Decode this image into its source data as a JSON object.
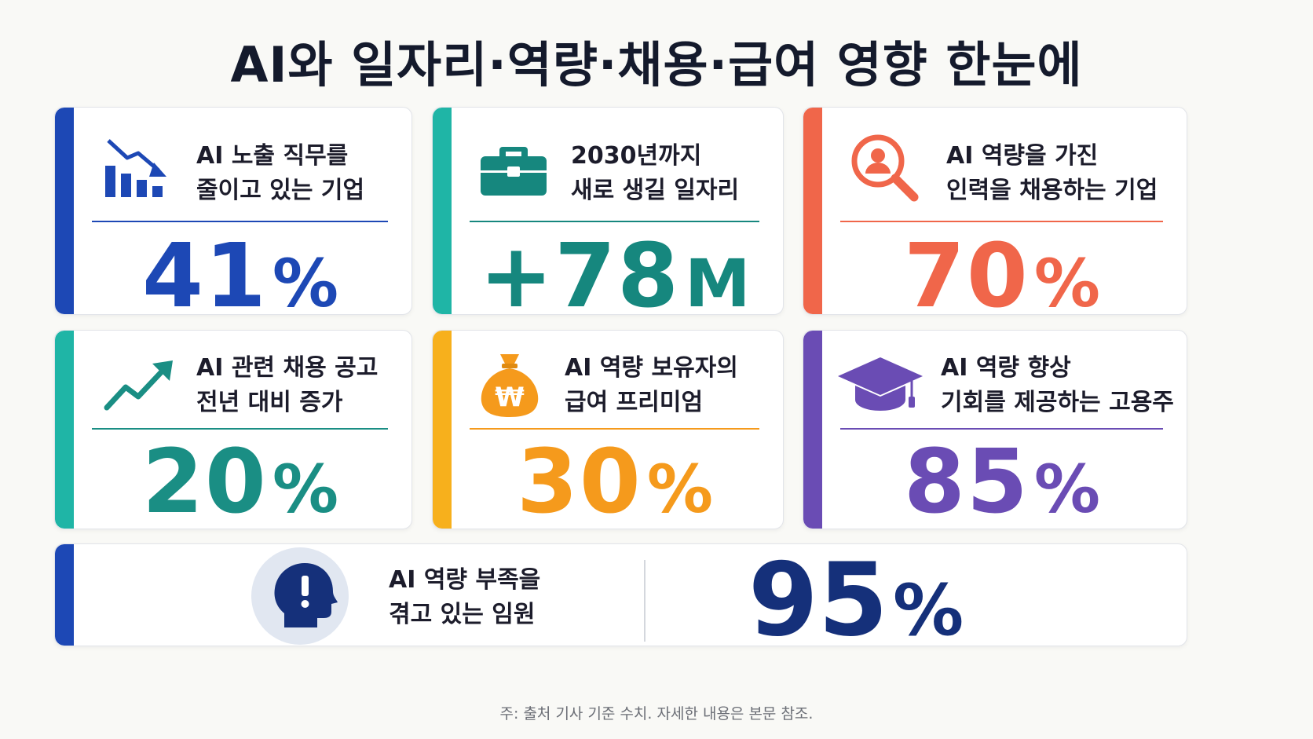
{
  "title": "AI와 일자리·역량·채용·급여 영향 한눈에",
  "cards": [
    {
      "label_line1": "AI 노출 직무를",
      "label_line2": "줄이고 있는 기업",
      "value": "41",
      "unit": "%",
      "color": "#1d48b5",
      "icon": "declining-bar-chart-icon"
    },
    {
      "label_line1": "2030년까지",
      "label_line2": "새로 생길 일자리",
      "value": "+78",
      "unit": "M",
      "color": "#16877e",
      "icon": "briefcase-icon"
    },
    {
      "label_line1": "AI 역량을 가진",
      "label_line2": "인력을 채용하는 기업",
      "value": "70",
      "unit": "%",
      "color": "#f0664a",
      "icon": "person-search-icon"
    },
    {
      "label_line1": "AI 관련 채용 공고",
      "label_line2": "전년 대비 증가",
      "value": "20",
      "unit": "%",
      "color": "#1a8e84",
      "icon": "trending-up-icon"
    },
    {
      "label_line1": "AI 역량 보유자의",
      "label_line2": "급여 프리미엄",
      "value": "30",
      "unit": "%",
      "color": "#f59a1c",
      "icon": "won-money-bag-icon"
    },
    {
      "label_line1": "AI 역량 향상",
      "label_line2": "기회를 제공하는 고용주",
      "value": "85",
      "unit": "%",
      "color": "#6a4cb4",
      "icon": "graduation-cap-icon"
    }
  ],
  "wide_card": {
    "label_line1": "AI 역량 부족을",
    "label_line2": "겪고 있는 임원",
    "value": "95",
    "unit": "%",
    "color": "#15307a",
    "icon": "head-exclamation-icon"
  },
  "footnote": "주: 출처 기사 기준 수치. 자세한 내용은 본문 참조."
}
